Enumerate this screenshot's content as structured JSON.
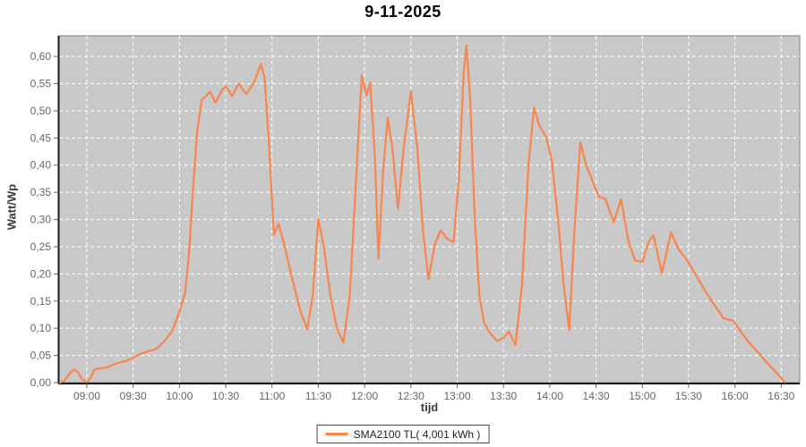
{
  "chart": {
    "title": "9-11-2025",
    "colors": {
      "line": "#F9854C",
      "plot_bg": "#C9C9C9",
      "grid": "#FFFFFF",
      "axis": "#1a1a1a",
      "plot_border": "#7e7e7e",
      "tick": "#666666",
      "tick_text": "#666666"
    }
  },
  "chart_data": {
    "type": "line",
    "title": "9-11-2025",
    "xlabel": "tijd",
    "ylabel": "Watt/Wp",
    "x_unit": "time_decimal_hours",
    "xlim": [
      8.7,
      16.7
    ],
    "ylim": [
      0,
      0.638
    ],
    "grid": "white-dashed",
    "legend_position": "bottom-center",
    "legend": [
      "SMA2100 TL( 4,001 kWh )"
    ],
    "xticks": [
      9.0,
      9.5,
      10.0,
      10.5,
      11.0,
      11.5,
      12.0,
      12.5,
      13.0,
      13.5,
      14.0,
      14.5,
      15.0,
      15.5,
      16.0,
      16.5
    ],
    "xtick_labels": [
      "09:00",
      "09:30",
      "10:00",
      "10:30",
      "11:00",
      "11:30",
      "12:00",
      "12:30",
      "13:00",
      "13:30",
      "14:00",
      "14:30",
      "15:00",
      "15:30",
      "16:00",
      "16:30"
    ],
    "yticks": [
      0.0,
      0.05,
      0.1,
      0.15,
      0.2,
      0.25,
      0.3,
      0.35,
      0.4,
      0.45,
      0.5,
      0.55,
      0.6
    ],
    "ytick_labels": [
      "0,00",
      "0,05",
      "0,10",
      "0,15",
      "0,20",
      "0,25",
      "0,30",
      "0,35",
      "0,40",
      "0,45",
      "0,50",
      "0,55",
      "0,60"
    ],
    "series": [
      {
        "name": "SMA2100 TL( 4,001 kWh )",
        "color": "#F9854C",
        "points": [
          [
            8.71,
            0.0
          ],
          [
            8.76,
            0.004
          ],
          [
            8.81,
            0.016
          ],
          [
            8.86,
            0.024
          ],
          [
            8.9,
            0.02
          ],
          [
            8.95,
            0.006
          ],
          [
            9.0,
            0.001
          ],
          [
            9.04,
            0.008
          ],
          [
            9.08,
            0.024
          ],
          [
            9.13,
            0.026
          ],
          [
            9.21,
            0.028
          ],
          [
            9.29,
            0.033
          ],
          [
            9.33,
            0.036
          ],
          [
            9.42,
            0.04
          ],
          [
            9.5,
            0.046
          ],
          [
            9.58,
            0.053
          ],
          [
            9.67,
            0.058
          ],
          [
            9.75,
            0.062
          ],
          [
            9.83,
            0.075
          ],
          [
            9.92,
            0.094
          ],
          [
            10.0,
            0.13
          ],
          [
            10.06,
            0.165
          ],
          [
            10.1,
            0.23
          ],
          [
            10.14,
            0.34
          ],
          [
            10.19,
            0.46
          ],
          [
            10.24,
            0.52
          ],
          [
            10.29,
            0.528
          ],
          [
            10.33,
            0.535
          ],
          [
            10.39,
            0.515
          ],
          [
            10.46,
            0.538
          ],
          [
            10.5,
            0.545
          ],
          [
            10.57,
            0.527
          ],
          [
            10.64,
            0.55
          ],
          [
            10.72,
            0.531
          ],
          [
            10.8,
            0.55
          ],
          [
            10.88,
            0.586
          ],
          [
            10.92,
            0.56
          ],
          [
            10.97,
            0.43
          ],
          [
            11.02,
            0.272
          ],
          [
            11.07,
            0.292
          ],
          [
            11.13,
            0.255
          ],
          [
            11.22,
            0.19
          ],
          [
            11.31,
            0.13
          ],
          [
            11.38,
            0.098
          ],
          [
            11.44,
            0.16
          ],
          [
            11.5,
            0.301
          ],
          [
            11.56,
            0.25
          ],
          [
            11.63,
            0.16
          ],
          [
            11.7,
            0.1
          ],
          [
            11.77,
            0.074
          ],
          [
            11.84,
            0.16
          ],
          [
            11.91,
            0.38
          ],
          [
            11.97,
            0.565
          ],
          [
            12.02,
            0.528
          ],
          [
            12.06,
            0.552
          ],
          [
            12.11,
            0.42
          ],
          [
            12.15,
            0.228
          ],
          [
            12.2,
            0.39
          ],
          [
            12.25,
            0.487
          ],
          [
            12.3,
            0.43
          ],
          [
            12.36,
            0.32
          ],
          [
            12.42,
            0.43
          ],
          [
            12.5,
            0.536
          ],
          [
            12.57,
            0.43
          ],
          [
            12.63,
            0.28
          ],
          [
            12.69,
            0.19
          ],
          [
            12.76,
            0.255
          ],
          [
            12.82,
            0.28
          ],
          [
            12.89,
            0.265
          ],
          [
            12.96,
            0.258
          ],
          [
            13.02,
            0.38
          ],
          [
            13.07,
            0.57
          ],
          [
            13.1,
            0.62
          ],
          [
            13.14,
            0.52
          ],
          [
            13.19,
            0.3
          ],
          [
            13.24,
            0.16
          ],
          [
            13.29,
            0.11
          ],
          [
            13.35,
            0.092
          ],
          [
            13.43,
            0.077
          ],
          [
            13.5,
            0.082
          ],
          [
            13.56,
            0.094
          ],
          [
            13.63,
            0.069
          ],
          [
            13.7,
            0.18
          ],
          [
            13.77,
            0.4
          ],
          [
            13.83,
            0.506
          ],
          [
            13.89,
            0.472
          ],
          [
            13.96,
            0.452
          ],
          [
            14.02,
            0.41
          ],
          [
            14.09,
            0.3
          ],
          [
            14.15,
            0.18
          ],
          [
            14.21,
            0.097
          ],
          [
            14.27,
            0.29
          ],
          [
            14.33,
            0.442
          ],
          [
            14.39,
            0.402
          ],
          [
            14.46,
            0.372
          ],
          [
            14.53,
            0.342
          ],
          [
            14.6,
            0.338
          ],
          [
            14.69,
            0.295
          ],
          [
            14.77,
            0.337
          ],
          [
            14.85,
            0.26
          ],
          [
            14.92,
            0.225
          ],
          [
            15.0,
            0.222
          ],
          [
            15.07,
            0.26
          ],
          [
            15.12,
            0.271
          ],
          [
            15.21,
            0.201
          ],
          [
            15.31,
            0.276
          ],
          [
            15.39,
            0.245
          ],
          [
            15.47,
            0.229
          ],
          [
            15.57,
            0.2
          ],
          [
            15.7,
            0.163
          ],
          [
            15.79,
            0.14
          ],
          [
            15.88,
            0.118
          ],
          [
            15.98,
            0.114
          ],
          [
            16.08,
            0.09
          ],
          [
            16.17,
            0.07
          ],
          [
            16.27,
            0.052
          ],
          [
            16.37,
            0.032
          ],
          [
            16.46,
            0.016
          ],
          [
            16.54,
            0.001
          ]
        ]
      }
    ]
  }
}
